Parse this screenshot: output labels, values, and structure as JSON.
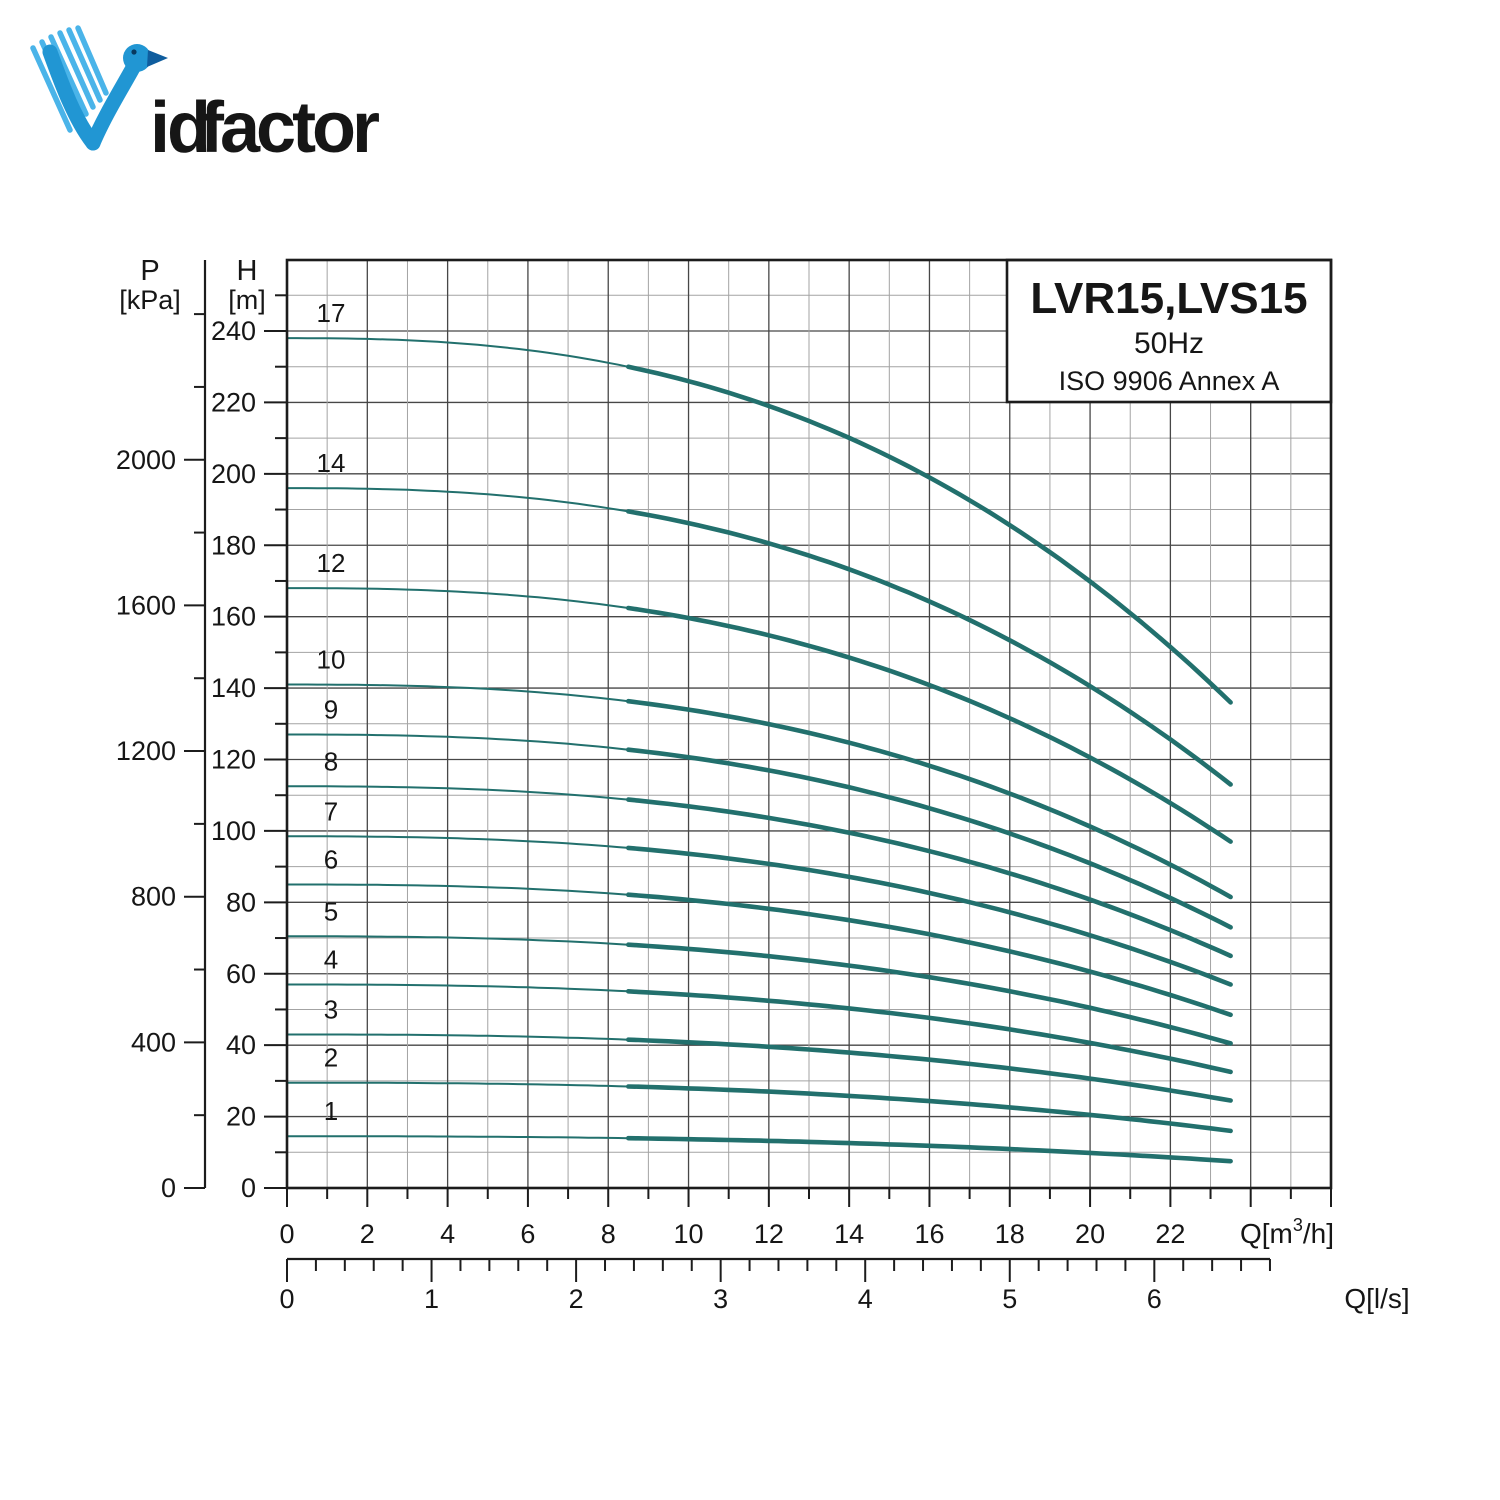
{
  "logo": {
    "word_part_blue": "id",
    "word_part_orange": "factor",
    "blue": "#2196d3",
    "light_blue": "#4ab4e9",
    "dark_blue": "#0f5d9e",
    "orange": "#f0a31f"
  },
  "title_box": {
    "model": "LVR15,LVS15",
    "frequency": "50Hz",
    "standard": "ISO 9906 Annex A"
  },
  "axis_labels": {
    "pressure_symbol": "P",
    "pressure_unit": "[kPa]",
    "head_symbol": "H",
    "head_unit": "[m]",
    "flow_unit_prefix": "Q[m",
    "flow_unit_sup": "3",
    "flow_unit_suffix": "/h]",
    "flow_ls_unit": "Q[l/s]"
  },
  "pressure_axis": {
    "labels": [
      0,
      400,
      800,
      1200,
      1600,
      2000
    ],
    "tick_step_kpa": 200,
    "max_tick_kpa": 2400,
    "kpa_per_m": 9.80665
  },
  "head_axis": {
    "labels": [
      0,
      20,
      40,
      60,
      80,
      100,
      120,
      140,
      160,
      180,
      200,
      220,
      240
    ],
    "minor_step_m": 10,
    "major_step_m": 20,
    "max_tick_m": 250
  },
  "flow_axis": {
    "labels": [
      0,
      2,
      4,
      6,
      8,
      10,
      12,
      14,
      16,
      18,
      20,
      22
    ],
    "minor_step": 1,
    "major_step": 2,
    "max": 26
  },
  "flow_ls_axis": {
    "labels": [
      0,
      1,
      2,
      3,
      4,
      5,
      6
    ],
    "minor_step": 0.2,
    "max": 6.8,
    "m3h_per_ls": 3.6
  },
  "colors": {
    "curve": "#22706d",
    "grid_major": "#474747",
    "grid_minor": "#a3a3a3",
    "frame": "#1c1c1c"
  },
  "chart_data": {
    "type": "line",
    "title": "LVR15,LVS15 50Hz ISO 9906 Annex A",
    "xlabel": "Q [m3/h]",
    "ylabel": "H [m]",
    "xlim": [
      0,
      26
    ],
    "ylim": [
      0,
      260
    ],
    "legend_position": "none",
    "grid": "on",
    "q_start": 0,
    "q_end": 23.5,
    "thick_from_q": 8.5,
    "shape_exponent": 2.5,
    "q_samples": [
      0,
      4,
      8,
      12,
      16,
      20,
      23.5
    ],
    "series": [
      {
        "label": "17",
        "h0": 238.0,
        "h_end": 136.0,
        "h_samples": [
          238,
          236.8,
          231.1,
          219.0,
          199.0,
          169.8,
          136
        ]
      },
      {
        "label": "14",
        "h0": 196.0,
        "h_end": 113.0,
        "h_samples": [
          196,
          195.0,
          190.4,
          180.5,
          164.3,
          140.5,
          113
        ]
      },
      {
        "label": "12",
        "h0": 168.0,
        "h_end": 97.0,
        "h_samples": [
          168,
          167.2,
          163.2,
          154.8,
          140.8,
          120.6,
          97
        ]
      },
      {
        "label": "10",
        "h0": 141.0,
        "h_end": 81.5,
        "h_samples": [
          141,
          140.3,
          137.0,
          129.9,
          118.2,
          101.2,
          81.5
        ]
      },
      {
        "label": "9",
        "h0": 127.0,
        "h_end": 73.0,
        "h_samples": [
          127,
          126.4,
          123.3,
          116.9,
          106.3,
          90.9,
          73
        ]
      },
      {
        "label": "8",
        "h0": 112.5,
        "h_end": 65.0,
        "h_samples": [
          112.5,
          111.9,
          109.3,
          103.6,
          94.3,
          80.8,
          65
        ]
      },
      {
        "label": "7",
        "h0": 98.5,
        "h_end": 57.0,
        "h_samples": [
          98.5,
          98.0,
          95.7,
          90.8,
          82.6,
          70.8,
          57
        ]
      },
      {
        "label": "6",
        "h0": 85.0,
        "h_end": 48.5,
        "h_samples": [
          85,
          84.6,
          82.5,
          78.2,
          71.0,
          60.6,
          48.5
        ]
      },
      {
        "label": "5",
        "h0": 70.5,
        "h_end": 40.5,
        "h_samples": [
          70.5,
          70.1,
          68.5,
          64.9,
          59.0,
          50.5,
          40.5
        ]
      },
      {
        "label": "4",
        "h0": 57.0,
        "h_end": 32.5,
        "h_samples": [
          57,
          56.7,
          55.3,
          52.4,
          47.6,
          40.6,
          32.5
        ]
      },
      {
        "label": "3",
        "h0": 43.0,
        "h_end": 24.5,
        "h_samples": [
          43,
          42.8,
          41.7,
          39.6,
          35.9,
          30.6,
          24.5
        ]
      },
      {
        "label": "2",
        "h0": 29.5,
        "h_end": 16.0,
        "h_samples": [
          29.5,
          29.3,
          28.6,
          27.0,
          24.3,
          20.5,
          16
        ]
      },
      {
        "label": "1",
        "h0": 14.5,
        "h_end": 7.5,
        "h_samples": [
          14.5,
          14.4,
          14.0,
          13.2,
          11.8,
          9.8,
          7.5
        ]
      }
    ]
  }
}
